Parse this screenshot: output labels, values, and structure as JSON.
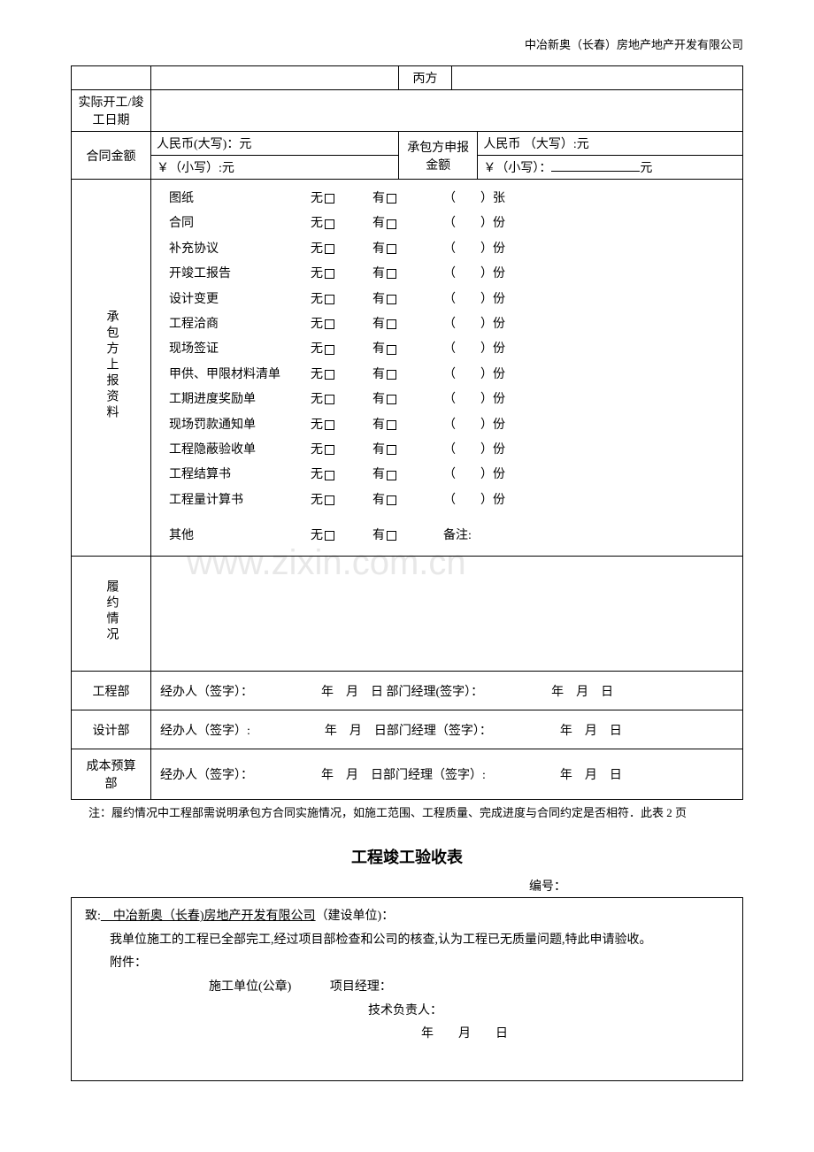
{
  "header": "中冶新奥（长春）房地产地产开发有限公司",
  "row1": {
    "col3_label": "丙方"
  },
  "row2": {
    "label": "实际开工/竣工日期"
  },
  "row3": {
    "label": "合同金额",
    "upper": "人民币(大写)：元",
    "lower": "￥（小写）:元",
    "mid_label": "承包方申报金额",
    "right_upper": "人民币 （大写）:元",
    "right_lower_prefix": "￥（小写）：",
    "right_lower_suffix": "元"
  },
  "docs": {
    "label": "承包方上报资料",
    "items": [
      {
        "name": "图纸",
        "unit": "张"
      },
      {
        "name": "合同",
        "unit": "份"
      },
      {
        "name": "补充协议",
        "unit": "份"
      },
      {
        "name": "开竣工报告",
        "unit": "份"
      },
      {
        "name": "设计变更",
        "unit": "份"
      },
      {
        "name": "工程洽商",
        "unit": "份"
      },
      {
        "name": "现场签证",
        "unit": "份"
      },
      {
        "name": "甲供、甲限材料清单",
        "unit": "份"
      },
      {
        "name": "工期进度奖励单",
        "unit": "份"
      },
      {
        "name": "现场罚款通知单",
        "unit": "份"
      },
      {
        "name": "工程隐蔽验收单",
        "unit": "份"
      },
      {
        "name": "工程结算书",
        "unit": "份"
      },
      {
        "name": "工程量计算书",
        "unit": "份"
      }
    ],
    "other": {
      "name": "其他",
      "remark": "备注:"
    },
    "no_label": "无",
    "yes_label": "有"
  },
  "perf": {
    "label": "履约情况"
  },
  "sign_rows": [
    {
      "label": "工程部",
      "text": "经办人（签字）：　　　　　　年　月　日 部门经理(签字）：　　　　　　年　月　日"
    },
    {
      "label": "设计部",
      "text": "经办人（签字）:　　　　　　年　月　日部门经理（签字）：　　　　　　年　月　日"
    },
    {
      "label": "成本预算部",
      "text": "经办人（签字）：　　　　　　年　月　日部门经理（签字）:　　　　　　年　月　日"
    }
  ],
  "note": "注：履约情况中工程部需说明承包方合同实施情况，如施工范围、工程质量、完成进度与合同约定是否相符．此表 2 页",
  "section2": {
    "title": "工程竣工验收表",
    "number_label": "编号：",
    "to_prefix": "致:",
    "to_body": "　中冶新奥（长春)房地产开发有限公司",
    "to_suffix": "（建设单位)：",
    "line2": "我单位施工的工程已全部完工,经过项目部检查和公司的核查,认为工程已无质量问题,特此申请验收。",
    "line3": "附件：",
    "line4_a": "施工单位(公章)",
    "line4_b": "项目经理：",
    "line5": "技术负责人：",
    "line6": "年　　月　　日"
  },
  "watermark": "www.zixin.com.cn",
  "colors": {
    "text": "#000000",
    "background": "#ffffff",
    "watermark": "#e8e8e8"
  }
}
